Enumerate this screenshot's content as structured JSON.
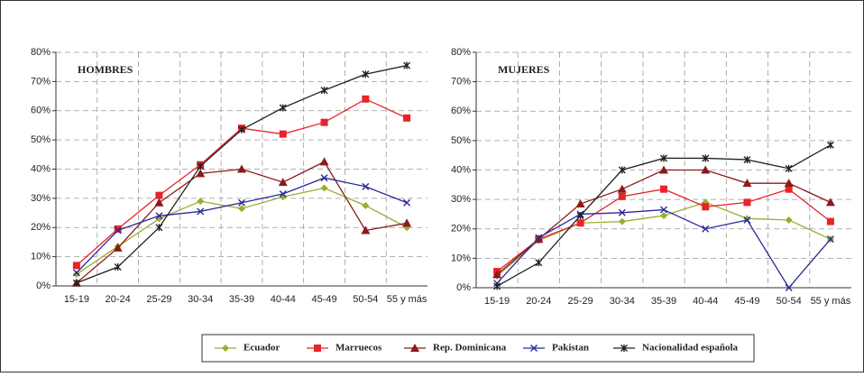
{
  "chart_data": [
    {
      "type": "line",
      "title": "HOMBRES",
      "categories": [
        "15-19",
        "20-24",
        "25-29",
        "30-34",
        "35-39",
        "40-44",
        "45-49",
        "50-54",
        "55 y más"
      ],
      "ylim": [
        0,
        80
      ],
      "yticks": [
        {
          "value": 0,
          "label": "0%"
        },
        {
          "value": 10,
          "label": "10%"
        },
        {
          "value": 20,
          "label": "20%"
        },
        {
          "value": 30,
          "label": "30%"
        },
        {
          "value": 40,
          "label": "40%"
        },
        {
          "value": 50,
          "label": "50%"
        },
        {
          "value": 60,
          "label": "60%"
        },
        {
          "value": 70,
          "label": "70%"
        },
        {
          "value": 80,
          "label": "80%"
        }
      ],
      "grid": true,
      "series": [
        {
          "name": "Ecuador",
          "color": "#9aad2e",
          "marker": "diamond",
          "values": [
            4,
            13.5,
            23,
            29,
            26.5,
            30.5,
            33.5,
            27.5,
            20
          ]
        },
        {
          "name": "Marruecos",
          "color": "#e8232a",
          "marker": "square",
          "values": [
            7,
            19.5,
            31,
            41.5,
            54,
            52,
            56,
            64,
            57.5
          ]
        },
        {
          "name": "Rep. Dominicana",
          "color": "#8b1a1a",
          "marker": "triangle",
          "values": [
            1,
            13,
            28.5,
            38.5,
            40,
            35.5,
            42.5,
            19,
            21.5
          ]
        },
        {
          "name": "Pakistan",
          "color": "#2a2a9a",
          "marker": "x",
          "values": [
            4.5,
            19,
            24,
            25.5,
            28.5,
            31.5,
            37,
            34,
            28.5
          ]
        },
        {
          "name": "Nacionalidad española",
          "color": "#222222",
          "marker": "star",
          "values": [
            1,
            6.5,
            20,
            41,
            53.5,
            61,
            67,
            72.5,
            75.5
          ]
        }
      ]
    },
    {
      "type": "line",
      "title": "MUJERES",
      "categories": [
        "15-19",
        "20-24",
        "25-29",
        "30-34",
        "35-39",
        "40-44",
        "45-49",
        "50-54",
        "55 y más"
      ],
      "ylim": [
        0,
        80
      ],
      "yticks": [
        {
          "value": 0,
          "label": "0%"
        },
        {
          "value": 10,
          "label": "10%"
        },
        {
          "value": 20,
          "label": "20%"
        },
        {
          "value": 30,
          "label": "30%"
        },
        {
          "value": 40,
          "label": "40%"
        },
        {
          "value": 50,
          "label": "50%"
        },
        {
          "value": 60,
          "label": "60%"
        },
        {
          "value": 70,
          "label": "70%"
        },
        {
          "value": 80,
          "label": "80%"
        }
      ],
      "grid": true,
      "series": [
        {
          "name": "Ecuador",
          "color": "#9aad2e",
          "marker": "diamond",
          "values": [
            4,
            16,
            22,
            22.5,
            24.5,
            29,
            23.5,
            23,
            16.5
          ]
        },
        {
          "name": "Marruecos",
          "color": "#e8232a",
          "marker": "square",
          "values": [
            5.5,
            16.5,
            22,
            31,
            33.5,
            27.5,
            29,
            33.5,
            22.5
          ]
        },
        {
          "name": "Rep. Dominicana",
          "color": "#8b1a1a",
          "marker": "triangle",
          "values": [
            4.5,
            16.5,
            28.5,
            33.5,
            40,
            40,
            35.5,
            35.5,
            29
          ]
        },
        {
          "name": "Pakistan",
          "color": "#2a2a9a",
          "marker": "x",
          "values": [
            1.5,
            17,
            25,
            25.5,
            26.5,
            20,
            23,
            0,
            16.5
          ]
        },
        {
          "name": "Nacionalidad española",
          "color": "#222222",
          "marker": "star",
          "values": [
            0.5,
            8.5,
            24.5,
            40,
            44,
            44,
            43.5,
            40.5,
            48.5
          ]
        }
      ]
    }
  ]
}
